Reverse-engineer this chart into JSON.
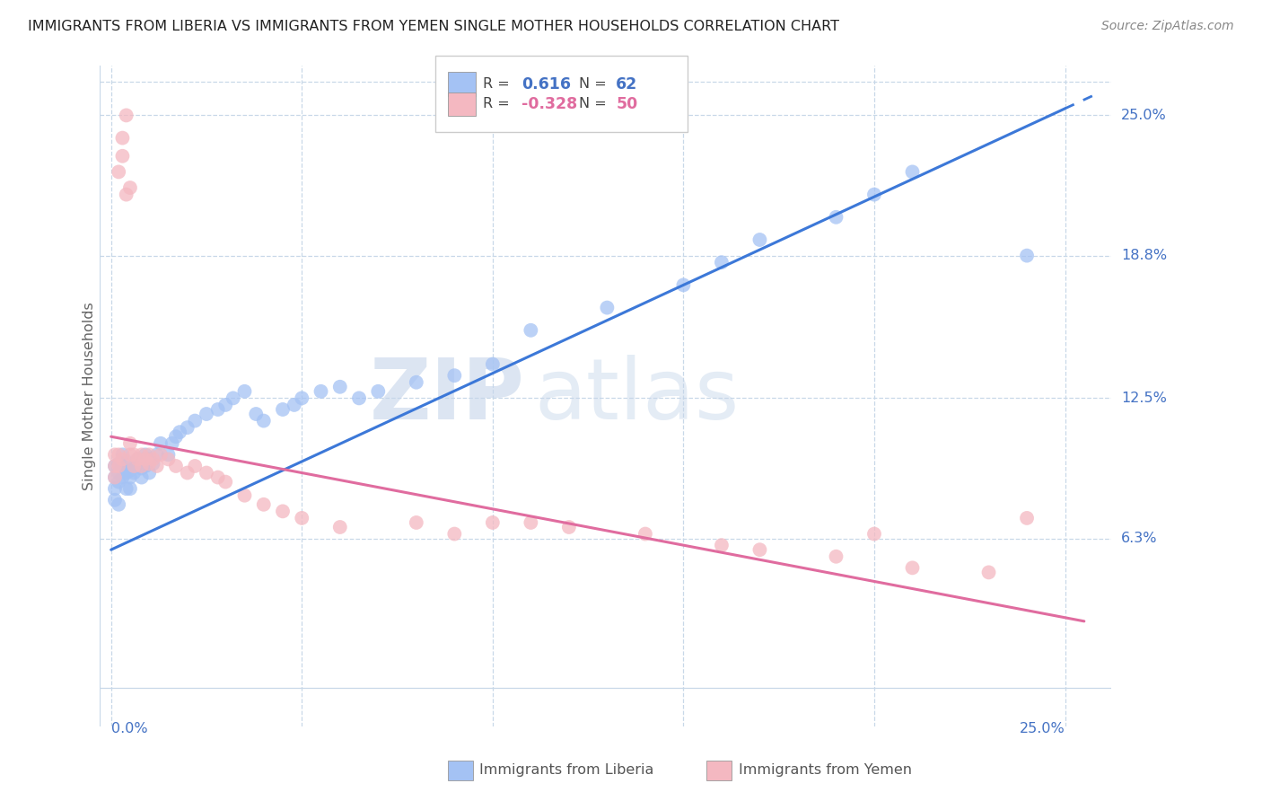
{
  "title": "IMMIGRANTS FROM LIBERIA VS IMMIGRANTS FROM YEMEN SINGLE MOTHER HOUSEHOLDS CORRELATION CHART",
  "source": "Source: ZipAtlas.com",
  "ylabel": "Single Mother Households",
  "ytick_labels": [
    "25.0%",
    "18.8%",
    "12.5%",
    "6.3%"
  ],
  "ytick_values": [
    0.25,
    0.188,
    0.125,
    0.063
  ],
  "xlim": [
    0.0,
    0.25
  ],
  "ylim": [
    -0.005,
    0.27
  ],
  "color_liberia": "#a4c2f4",
  "color_yemen": "#f4b8c1",
  "color_trendline_liberia": "#3c78d8",
  "color_trendline_yemen": "#e06c9f",
  "watermark_zip": "ZIP",
  "watermark_atlas": "atlas",
  "lib_intercept": 0.058,
  "lib_slope": 0.78,
  "yem_intercept": 0.108,
  "yem_slope": -0.32,
  "lib_x": [
    0.001,
    0.001,
    0.001,
    0.001,
    0.002,
    0.002,
    0.002,
    0.002,
    0.003,
    0.003,
    0.003,
    0.004,
    0.004,
    0.004,
    0.005,
    0.005,
    0.005,
    0.006,
    0.006,
    0.007,
    0.007,
    0.008,
    0.008,
    0.009,
    0.009,
    0.01,
    0.01,
    0.011,
    0.012,
    0.013,
    0.015,
    0.016,
    0.017,
    0.018,
    0.02,
    0.022,
    0.025,
    0.028,
    0.03,
    0.032,
    0.035,
    0.038,
    0.04,
    0.045,
    0.048,
    0.05,
    0.055,
    0.06,
    0.065,
    0.07,
    0.08,
    0.09,
    0.1,
    0.11,
    0.13,
    0.15,
    0.16,
    0.17,
    0.19,
    0.2,
    0.21,
    0.24
  ],
  "lib_y": [
    0.085,
    0.09,
    0.095,
    0.08,
    0.088,
    0.092,
    0.096,
    0.078,
    0.09,
    0.095,
    0.1,
    0.085,
    0.092,
    0.097,
    0.09,
    0.085,
    0.093,
    0.092,
    0.095,
    0.096,
    0.098,
    0.09,
    0.094,
    0.095,
    0.1,
    0.092,
    0.098,
    0.096,
    0.1,
    0.105,
    0.1,
    0.105,
    0.108,
    0.11,
    0.112,
    0.115,
    0.118,
    0.12,
    0.122,
    0.125,
    0.128,
    0.118,
    0.115,
    0.12,
    0.122,
    0.125,
    0.128,
    0.13,
    0.125,
    0.128,
    0.132,
    0.135,
    0.14,
    0.155,
    0.165,
    0.175,
    0.185,
    0.195,
    0.205,
    0.215,
    0.225,
    0.188
  ],
  "yem_x": [
    0.001,
    0.001,
    0.001,
    0.002,
    0.002,
    0.002,
    0.003,
    0.003,
    0.003,
    0.004,
    0.004,
    0.005,
    0.005,
    0.005,
    0.006,
    0.006,
    0.007,
    0.008,
    0.008,
    0.009,
    0.01,
    0.01,
    0.011,
    0.012,
    0.013,
    0.015,
    0.017,
    0.02,
    0.022,
    0.025,
    0.028,
    0.03,
    0.035,
    0.04,
    0.045,
    0.05,
    0.06,
    0.08,
    0.09,
    0.1,
    0.11,
    0.12,
    0.14,
    0.16,
    0.17,
    0.19,
    0.2,
    0.21,
    0.23,
    0.24
  ],
  "yem_y": [
    0.09,
    0.095,
    0.1,
    0.095,
    0.1,
    0.225,
    0.232,
    0.24,
    0.098,
    0.25,
    0.215,
    0.218,
    0.1,
    0.105,
    0.095,
    0.1,
    0.098,
    0.095,
    0.1,
    0.098,
    0.096,
    0.1,
    0.098,
    0.095,
    0.1,
    0.098,
    0.095,
    0.092,
    0.095,
    0.092,
    0.09,
    0.088,
    0.082,
    0.078,
    0.075,
    0.072,
    0.068,
    0.07,
    0.065,
    0.07,
    0.07,
    0.068,
    0.065,
    0.06,
    0.058,
    0.055,
    0.065,
    0.05,
    0.048,
    0.072
  ]
}
